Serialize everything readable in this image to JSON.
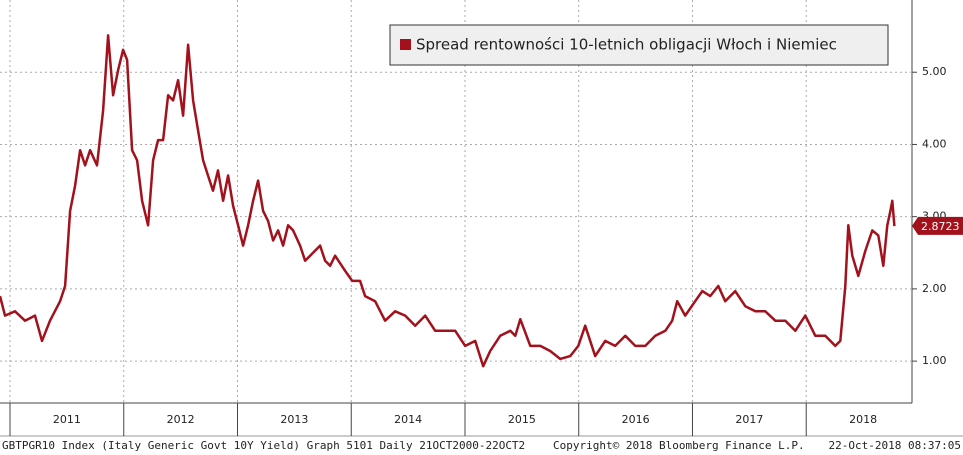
{
  "chart_data": {
    "type": "line",
    "legend_label": "Spread rentowności 10-letnich obligacji Włoch i Niemiec",
    "footer_left": "GBTPGR10 Index (Italy Generic Govt 10Y Yield) Graph 5101  Daily 21OCT2000-22OCT2",
    "footer_center": "Copyright© 2018 Bloomberg Finance L.P.",
    "footer_right": "22-Oct-2018 08:37:05",
    "last_value": 2.8723,
    "color": "#a3111c",
    "grid": true,
    "xlim": [
      2010.912,
      2018.93
    ],
    "xticks": [
      2011,
      2012,
      2013,
      2014,
      2015,
      2016,
      2017,
      2018
    ],
    "ylim": [
      0.42,
      6.0
    ],
    "yticks": [
      {
        "value": 1,
        "label": "1.00"
      },
      {
        "value": 2,
        "label": "2.00"
      },
      {
        "value": 3,
        "label": "3.00"
      },
      {
        "value": 4,
        "label": "4.00"
      },
      {
        "value": 5,
        "label": "5.00"
      }
    ],
    "x": [
      2010.912,
      2010.956,
      2011.044,
      2011.132,
      2011.22,
      2011.281,
      2011.352,
      2011.44,
      2011.484,
      2011.528,
      2011.572,
      2011.616,
      2011.66,
      2011.704,
      2011.765,
      2011.818,
      2011.862,
      2011.906,
      2011.95,
      2011.994,
      2012.029,
      2012.073,
      2012.117,
      2012.161,
      2012.214,
      2012.258,
      2012.302,
      2012.346,
      2012.39,
      2012.434,
      2012.478,
      2012.522,
      2012.566,
      2012.61,
      2012.654,
      2012.698,
      2012.741,
      2012.785,
      2012.829,
      2012.873,
      2012.917,
      2012.961,
      2013.005,
      2013.049,
      2013.093,
      2013.137,
      2013.181,
      2013.225,
      2013.269,
      2013.313,
      2013.357,
      2013.401,
      2013.445,
      2013.489,
      2013.55,
      2013.594,
      2013.638,
      2013.726,
      2013.77,
      2013.814,
      2013.858,
      2013.946,
      2014.008,
      2014.078,
      2014.122,
      2014.21,
      2014.298,
      2014.386,
      2014.474,
      2014.562,
      2014.65,
      2014.738,
      2014.826,
      2014.914,
      2015.002,
      2015.09,
      2015.16,
      2015.222,
      2015.31,
      2015.398,
      2015.442,
      2015.486,
      2015.574,
      2015.662,
      2015.749,
      2015.837,
      2015.925,
      2015.996,
      2016.057,
      2016.145,
      2016.233,
      2016.321,
      2016.409,
      2016.497,
      2016.585,
      2016.673,
      2016.761,
      2016.822,
      2016.866,
      2016.936,
      2017.024,
      2017.086,
      2017.156,
      2017.227,
      2017.288,
      2017.376,
      2017.464,
      2017.552,
      2017.64,
      2017.728,
      2017.816,
      2017.904,
      2017.992,
      2018.08,
      2018.168,
      2018.256,
      2018.3,
      2018.344,
      2018.37,
      2018.405,
      2018.458,
      2018.52,
      2018.581,
      2018.634,
      2018.678,
      2018.713,
      2018.74,
      2018.757,
      2018.775
    ],
    "values": [
      1.9,
      1.63,
      1.69,
      1.56,
      1.63,
      1.28,
      1.56,
      1.83,
      2.04,
      3.08,
      3.43,
      3.92,
      3.71,
      3.92,
      3.71,
      4.47,
      5.51,
      4.68,
      5.03,
      5.31,
      5.17,
      3.92,
      3.78,
      3.22,
      2.88,
      3.78,
      4.06,
      4.06,
      4.68,
      4.61,
      4.89,
      4.4,
      5.38,
      4.61,
      4.19,
      3.78,
      3.57,
      3.36,
      3.64,
      3.22,
      3.57,
      3.15,
      2.88,
      2.6,
      2.88,
      3.22,
      3.5,
      3.08,
      2.94,
      2.67,
      2.81,
      2.6,
      2.88,
      2.81,
      2.6,
      2.39,
      2.46,
      2.6,
      2.39,
      2.32,
      2.46,
      2.25,
      2.11,
      2.11,
      1.9,
      1.83,
      1.56,
      1.69,
      1.63,
      1.49,
      1.63,
      1.42,
      1.42,
      1.42,
      1.21,
      1.28,
      0.93,
      1.14,
      1.35,
      1.42,
      1.35,
      1.58,
      1.21,
      1.21,
      1.14,
      1.03,
      1.07,
      1.21,
      1.49,
      1.07,
      1.28,
      1.21,
      1.35,
      1.21,
      1.21,
      1.35,
      1.42,
      1.56,
      1.83,
      1.63,
      1.83,
      1.97,
      1.9,
      2.04,
      1.83,
      1.97,
      1.76,
      1.69,
      1.69,
      1.56,
      1.56,
      1.42,
      1.63,
      1.35,
      1.35,
      1.21,
      1.28,
      2.04,
      2.88,
      2.46,
      2.18,
      2.53,
      2.81,
      2.74,
      2.32,
      2.88,
      3.08,
      3.22,
      2.87
    ]
  }
}
